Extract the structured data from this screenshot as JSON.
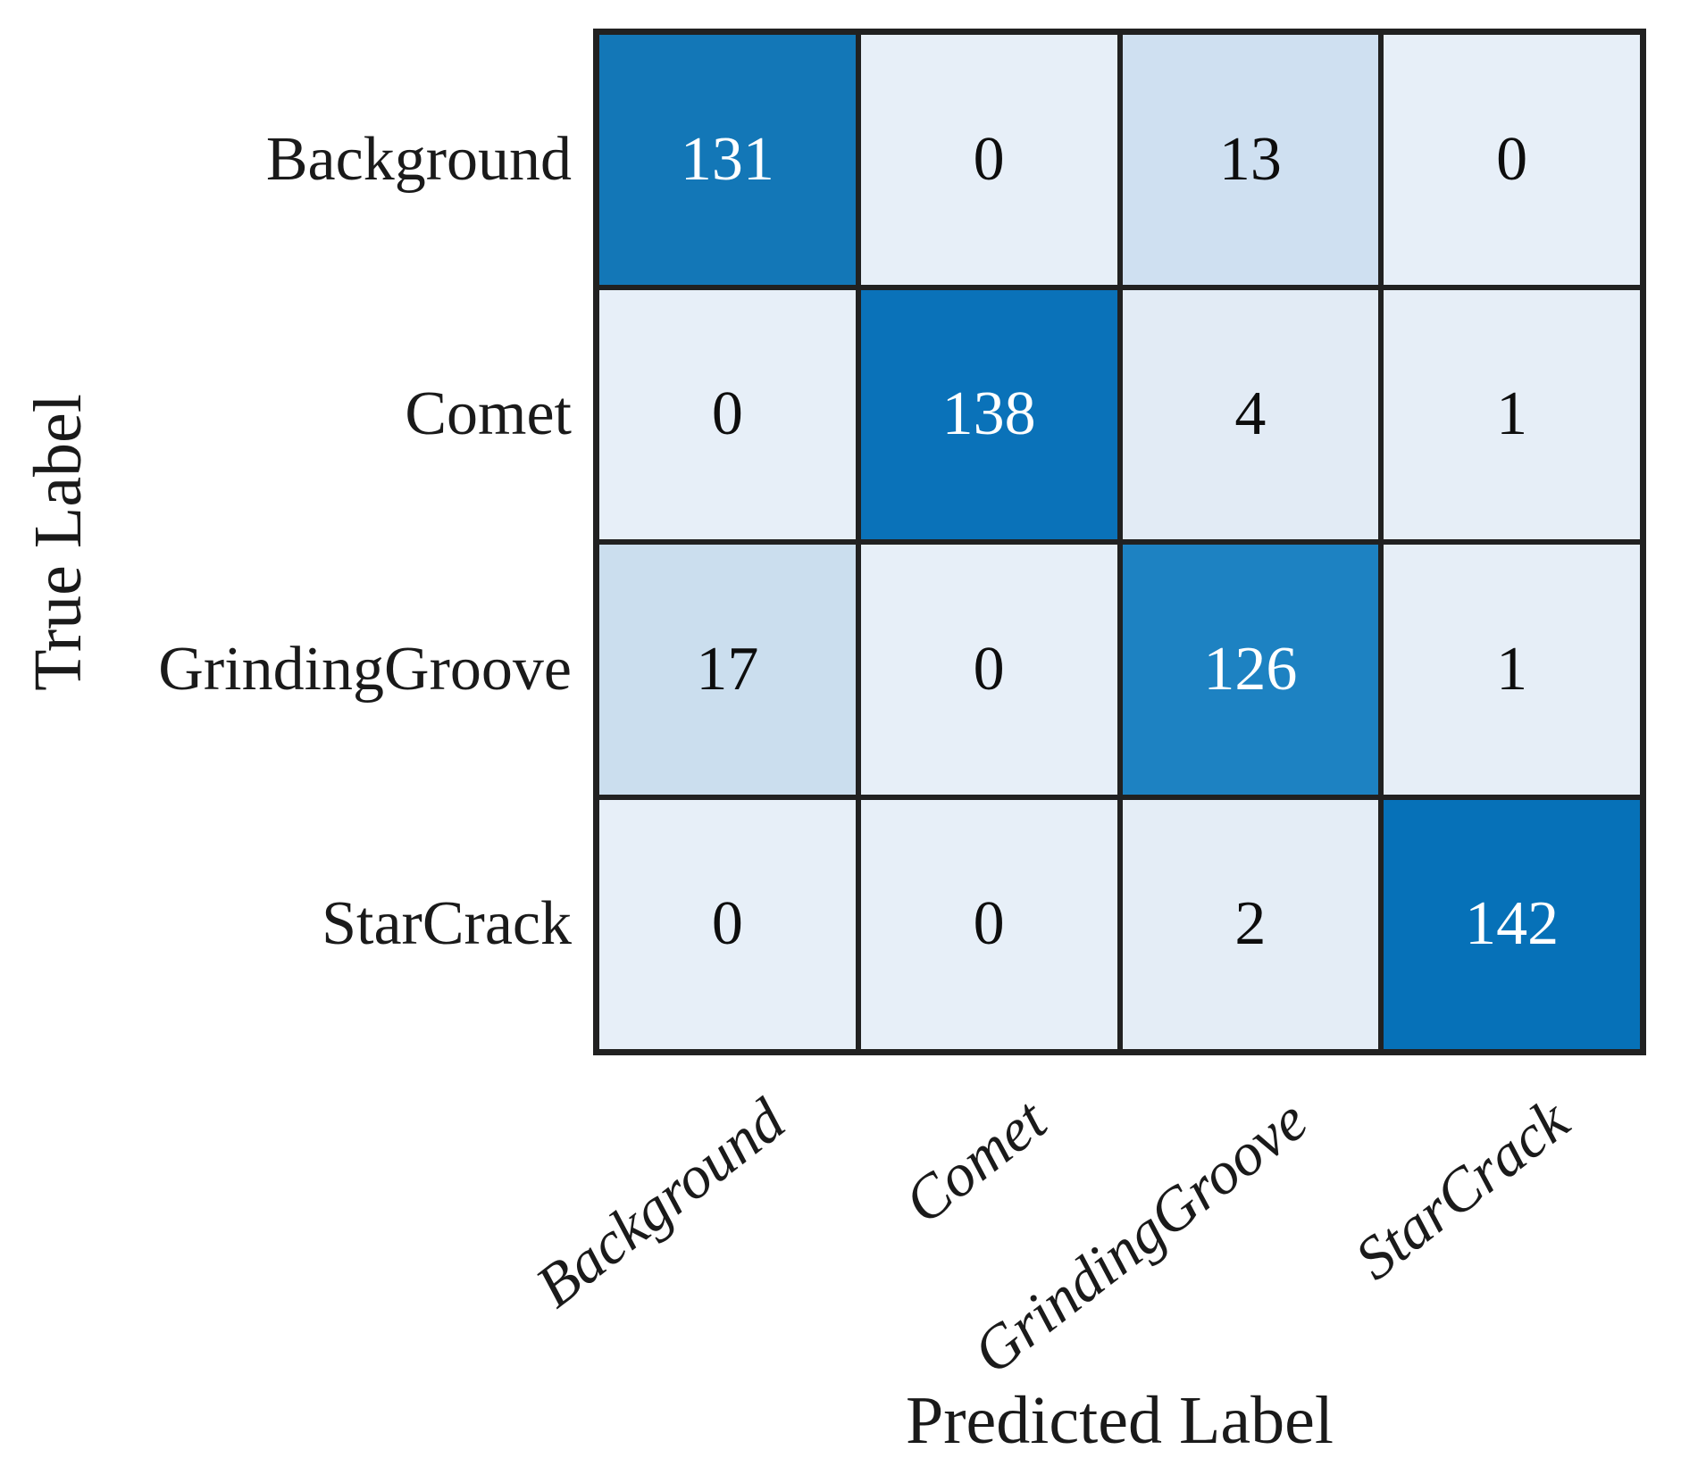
{
  "chart_data": {
    "type": "heatmap",
    "subtype": "confusion-matrix",
    "title": "",
    "xlabel": "Predicted Label",
    "ylabel": "True Label",
    "x_categories": [
      "Background",
      "Comet",
      "GrindingGroove",
      "StarCrack"
    ],
    "y_categories": [
      "Background",
      "Comet",
      "GrindingGroove",
      "StarCrack"
    ],
    "matrix": [
      [
        131,
        0,
        13,
        0
      ],
      [
        0,
        138,
        4,
        1
      ],
      [
        17,
        0,
        126,
        1
      ],
      [
        0,
        0,
        2,
        142
      ]
    ],
    "cell_colors": [
      [
        "#1377b7",
        "#e7eff8",
        "#cfe0f1",
        "#e7eff8"
      ],
      [
        "#e7eff8",
        "#0a72b9",
        "#e2ebf5",
        "#e6eef7"
      ],
      [
        "#cbdeee",
        "#e7eff8",
        "#1d82c2",
        "#e6eef7"
      ],
      [
        "#e7eff8",
        "#e7eff8",
        "#e4edf6",
        "#0671b8"
      ]
    ],
    "cell_text_colors": [
      [
        "#ffffff",
        "#0d0d0d",
        "#0d0d0d",
        "#0d0d0d"
      ],
      [
        "#0d0d0d",
        "#ffffff",
        "#0d0d0d",
        "#0d0d0d"
      ],
      [
        "#0d0d0d",
        "#0d0d0d",
        "#ffffff",
        "#0d0d0d"
      ],
      [
        "#0d0d0d",
        "#0d0d0d",
        "#0d0d0d",
        "#ffffff"
      ]
    ],
    "colormap": "Blues",
    "grid_line_color": "#212121",
    "background_color": "#ffffff",
    "x_tick_rotation_deg": -38,
    "x_tick_style": "italic",
    "legend": "none",
    "value_range": [
      0,
      142
    ]
  }
}
